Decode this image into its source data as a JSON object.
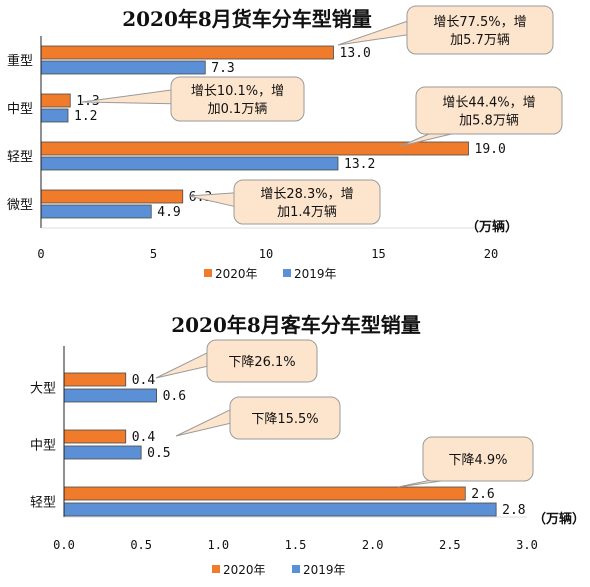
{
  "colors": {
    "series_2020": "#f07b2a",
    "series_2019": "#5b8fd6",
    "bar_edge": "#4a4a4a",
    "callout_fill": "#fde4cc",
    "callout_edge": "#9a9a9a"
  },
  "chart_data": [
    {
      "type": "bar",
      "orientation": "horizontal",
      "title": "2020年8月货车分车型销量",
      "unit_label": "（万辆）",
      "categories": [
        "重型",
        "中型",
        "轻型",
        "微型"
      ],
      "series": [
        {
          "name": "2020年",
          "values": [
            13.0,
            1.3,
            19.0,
            6.3
          ],
          "labels": [
            "13.0",
            "1.3",
            "19.0",
            "6.3"
          ]
        },
        {
          "name": "2019年",
          "values": [
            7.3,
            1.2,
            13.2,
            4.9
          ],
          "labels": [
            "7.3",
            "1.2",
            "13.2",
            "4.9"
          ]
        }
      ],
      "xlim": [
        0,
        20
      ],
      "xticks": [
        "0",
        "5",
        "10",
        "15",
        "20"
      ],
      "legend": "bottom",
      "annotations": [
        {
          "lines": [
            "增长77.5%，增",
            "加5.7万辆"
          ]
        },
        {
          "lines": [
            "增长10.1%，增",
            "加0.1万辆"
          ]
        },
        {
          "lines": [
            "增长44.4%，增",
            "加5.8万辆"
          ]
        },
        {
          "lines": [
            "增长28.3%，增",
            "加1.4万辆"
          ]
        }
      ]
    },
    {
      "type": "bar",
      "orientation": "horizontal",
      "title": "2020年8月客车分车型销量",
      "unit_label": "（万辆）",
      "categories": [
        "大型",
        "中型",
        "轻型"
      ],
      "series": [
        {
          "name": "2020年",
          "values": [
            0.4,
            0.4,
            2.6
          ],
          "labels": [
            "0.4",
            "0.4",
            "2.6"
          ]
        },
        {
          "name": "2019年",
          "values": [
            0.6,
            0.5,
            2.8
          ],
          "labels": [
            "0.6",
            "0.5",
            "2.8"
          ]
        }
      ],
      "xlim": [
        0,
        3.0
      ],
      "xticks": [
        "0.0",
        "0.5",
        "1.0",
        "1.5",
        "2.0",
        "2.5",
        "3.0"
      ],
      "legend": "bottom",
      "annotations": [
        {
          "lines": [
            "下降26.1%"
          ]
        },
        {
          "lines": [
            "下降15.5%"
          ]
        },
        {
          "lines": [
            "下降4.9%"
          ]
        }
      ]
    }
  ]
}
